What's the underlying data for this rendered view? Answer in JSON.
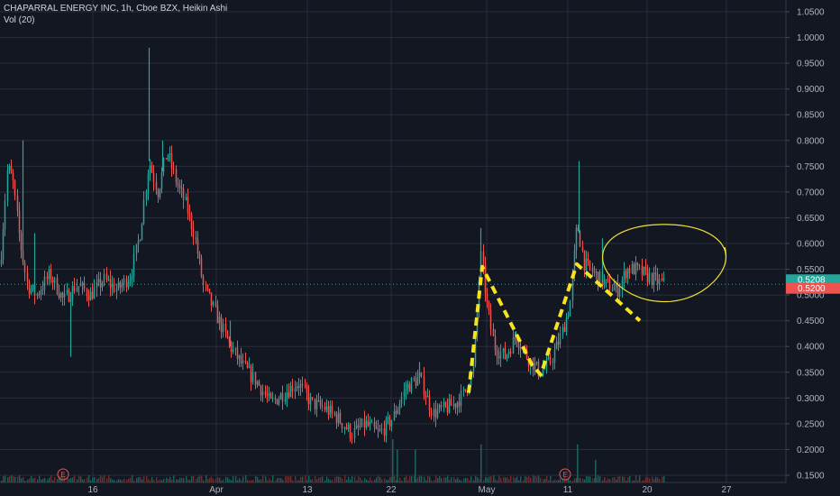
{
  "legend": {
    "symbol_line": "CHAPARRAL ENERGY INC, 1h, Cboe BZX, Heikin Ashi",
    "volume_line": "Vol (20)"
  },
  "colors": {
    "background": "#131722",
    "grid": "#2a2e39",
    "up": "#26a69a",
    "down": "#ef5350",
    "volume_up": "#1f5f5a",
    "volume_down": "#6b2d2f",
    "last_price_line": "#26a69a",
    "annotation": "#f5e41e",
    "circle": "#f0e033",
    "axis_text": "#b2b5be"
  },
  "chart_data": {
    "type": "candlestick",
    "y_axis_ticks": [
      "1.0500",
      "1.0000",
      "0.9500",
      "0.9000",
      "0.8500",
      "0.8000",
      "0.7500",
      "0.7000",
      "0.6500",
      "0.6000",
      "0.5500",
      "0.5000",
      "0.4500",
      "0.4000",
      "0.3500",
      "0.3000",
      "0.2500",
      "0.2000",
      "0.1500"
    ],
    "ylim": [
      0.13,
      1.07
    ],
    "x_axis_labels": [
      "16",
      "Apr",
      "13",
      "22",
      "May",
      "11",
      "20",
      "27"
    ],
    "price_tags": [
      {
        "value": 0.5208,
        "label": "0.5208",
        "color": "#26a69a"
      },
      {
        "value": 0.52,
        "label": "0.5200",
        "color": "#ef5350"
      }
    ],
    "events": [
      {
        "label": "E",
        "near": "Mar 10"
      },
      {
        "label": "E",
        "near": "May 11"
      }
    ],
    "waypoints": [
      [
        0,
        0.56,
        1
      ],
      [
        8,
        0.75,
        1
      ],
      [
        14,
        0.72,
        0
      ],
      [
        22,
        0.6,
        0
      ],
      [
        30,
        0.52,
        0
      ],
      [
        40,
        0.5,
        0
      ],
      [
        55,
        0.54,
        1
      ],
      [
        70,
        0.49,
        0
      ],
      [
        85,
        0.52,
        1
      ],
      [
        100,
        0.5,
        0
      ],
      [
        115,
        0.53,
        1
      ],
      [
        130,
        0.51,
        0
      ],
      [
        145,
        0.54,
        1
      ],
      [
        155,
        0.62,
        1
      ],
      [
        165,
        0.76,
        1
      ],
      [
        175,
        0.7,
        1
      ],
      [
        185,
        0.78,
        1
      ],
      [
        195,
        0.72,
        0
      ],
      [
        205,
        0.68,
        0
      ],
      [
        215,
        0.62,
        0
      ],
      [
        225,
        0.52,
        0
      ],
      [
        240,
        0.46,
        0
      ],
      [
        255,
        0.4,
        0
      ],
      [
        270,
        0.36,
        0
      ],
      [
        285,
        0.33,
        0
      ],
      [
        300,
        0.29,
        0
      ],
      [
        315,
        0.31,
        1
      ],
      [
        330,
        0.33,
        1
      ],
      [
        345,
        0.29,
        0
      ],
      [
        360,
        0.28,
        0
      ],
      [
        375,
        0.26,
        0
      ],
      [
        390,
        0.23,
        0
      ],
      [
        405,
        0.25,
        1
      ],
      [
        420,
        0.23,
        0
      ],
      [
        435,
        0.26,
        1
      ],
      [
        450,
        0.32,
        1
      ],
      [
        465,
        0.34,
        1
      ],
      [
        480,
        0.27,
        0
      ],
      [
        495,
        0.28,
        1
      ],
      [
        505,
        0.29,
        1
      ],
      [
        515,
        0.31,
        1
      ],
      [
        525,
        0.36,
        1
      ],
      [
        533,
        0.58,
        1
      ],
      [
        540,
        0.48,
        0
      ],
      [
        548,
        0.4,
        0
      ],
      [
        560,
        0.38,
        0
      ],
      [
        572,
        0.42,
        1
      ],
      [
        585,
        0.38,
        0
      ],
      [
        598,
        0.35,
        0
      ],
      [
        610,
        0.37,
        1
      ],
      [
        622,
        0.42,
        1
      ],
      [
        632,
        0.48,
        1
      ],
      [
        640,
        0.64,
        1
      ],
      [
        648,
        0.56,
        0
      ],
      [
        660,
        0.54,
        0
      ],
      [
        672,
        0.52,
        0
      ],
      [
        685,
        0.51,
        0
      ],
      [
        695,
        0.55,
        1
      ],
      [
        705,
        0.55,
        0
      ],
      [
        715,
        0.54,
        0
      ],
      [
        725,
        0.53,
        0
      ],
      [
        737,
        0.52,
        0
      ]
    ],
    "spikes": [
      [
        25,
        0.8
      ],
      [
        38,
        0.62
      ],
      [
        78,
        0.38
      ],
      [
        165,
        0.98
      ],
      [
        180,
        0.8
      ],
      [
        255,
        0.45
      ],
      [
        465,
        0.37
      ],
      [
        533,
        0.63
      ],
      [
        572,
        0.43
      ],
      [
        642,
        0.76
      ],
      [
        668,
        0.61
      ]
    ],
    "volume_spikes": [
      [
        435,
        0.22
      ],
      [
        440,
        0.2
      ],
      [
        460,
        0.2
      ],
      [
        533,
        0.21
      ],
      [
        640,
        0.21
      ],
      [
        660,
        0.18
      ]
    ],
    "annotations": {
      "zigzag": [
        [
          520,
          0.31
        ],
        [
          535,
          0.555
        ],
        [
          590,
          0.365
        ],
        [
          600,
          0.345
        ],
        [
          640,
          0.56
        ],
        [
          710,
          0.45
        ]
      ],
      "circle": {
        "center_x": 737,
        "center_value": 0.565,
        "rx": 68,
        "ry_value": 0.075
      }
    }
  }
}
